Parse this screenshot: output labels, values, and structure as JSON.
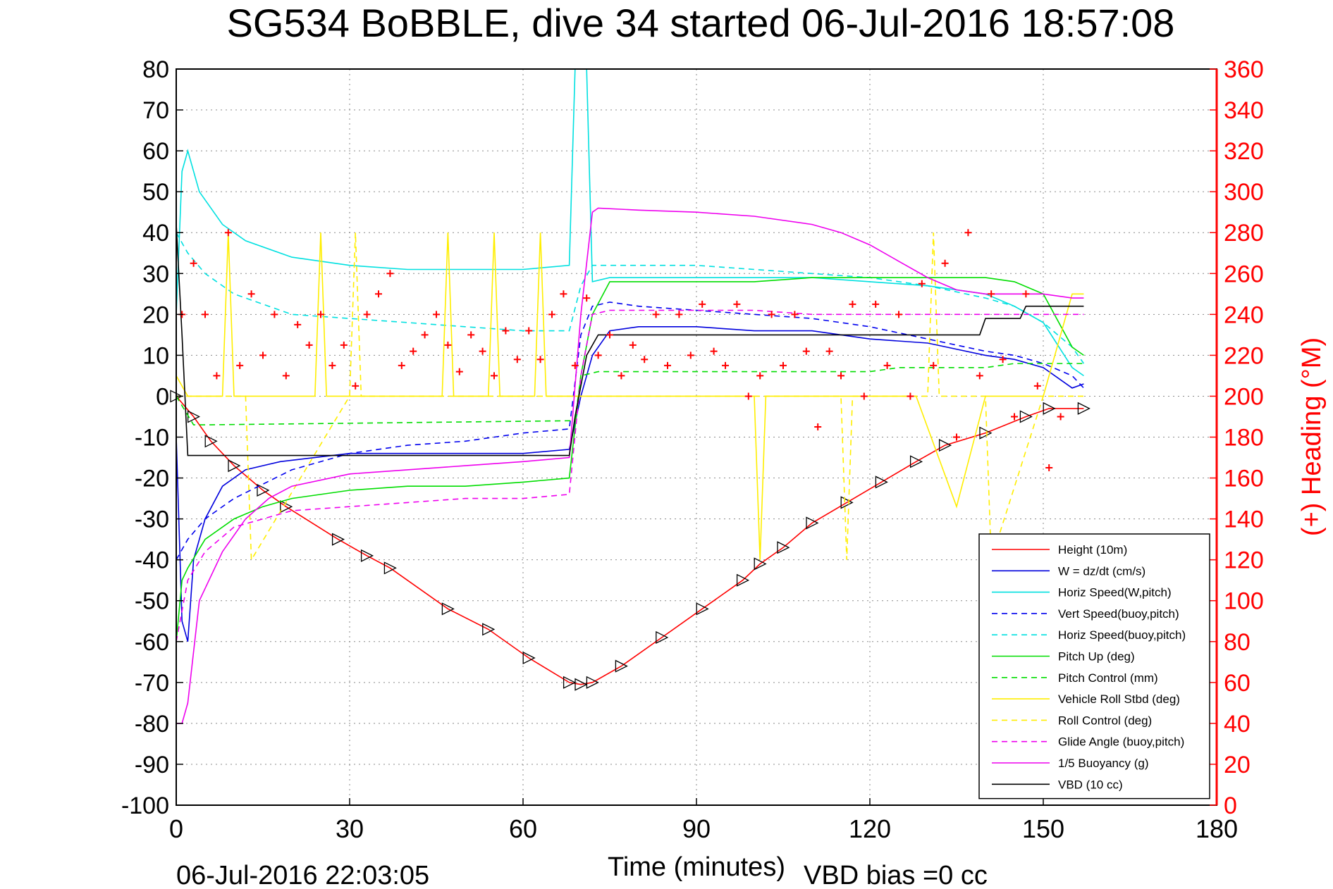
{
  "chart_data": {
    "type": "line",
    "title": "SG534 BoBBLE, dive 34 started 06-Jul-2016 18:57:08",
    "xlabel": "Time (minutes)",
    "ylabel": "",
    "y2label": "(+) Heading (°M)",
    "footer_left": "06-Jul-2016 22:03:05",
    "footer_right": "VBD bias =0 cc",
    "xlim": [
      0,
      180
    ],
    "ylim": [
      -100,
      80
    ],
    "y2lim": [
      0,
      360
    ],
    "xticks": [
      0,
      30,
      60,
      90,
      120,
      150,
      180
    ],
    "yticks": [
      -100,
      -90,
      -80,
      -70,
      -60,
      -50,
      -40,
      -30,
      -20,
      -10,
      0,
      10,
      20,
      30,
      40,
      50,
      60,
      70,
      80
    ],
    "y2ticks": [
      0,
      20,
      40,
      60,
      80,
      100,
      120,
      140,
      160,
      180,
      200,
      220,
      240,
      260,
      280,
      300,
      320,
      340,
      360
    ],
    "grid": true,
    "legend_position": "bottom-right",
    "colors": {
      "axis_right": "#ff0000",
      "axis_left": "#000000",
      "grid": "#888888"
    },
    "series": [
      {
        "name": "Height (10m)",
        "color": "#ff0000",
        "style": "solid",
        "marker": "triangle",
        "x": [
          0,
          3,
          6,
          10,
          15,
          19,
          28,
          33,
          37,
          47,
          54,
          61,
          68,
          70,
          72,
          77,
          84,
          91,
          98,
          101,
          105,
          110,
          116,
          122,
          128,
          133,
          140,
          147,
          151,
          157
        ],
        "y": [
          0,
          -5,
          -11,
          -17,
          -23,
          -27,
          -35,
          -39,
          -42,
          -52,
          -57,
          -64,
          -70,
          -70.5,
          -70,
          -66,
          -59,
          -52,
          -45,
          -41,
          -37,
          -31,
          -26,
          -21,
          -16,
          -12,
          -9,
          -5,
          -3,
          -3
        ]
      },
      {
        "name": "W = dz/dt (cm/s)",
        "color": "#0000dd",
        "style": "solid",
        "x": [
          0,
          1,
          2,
          3,
          5,
          8,
          12,
          18,
          30,
          40,
          50,
          60,
          68,
          70,
          72,
          75,
          80,
          90,
          100,
          110,
          120,
          130,
          140,
          145,
          150,
          155,
          157
        ],
        "y": [
          -10,
          -55,
          -60,
          -40,
          -30,
          -22,
          -18,
          -16,
          -14,
          -14,
          -14,
          -14,
          -13,
          0,
          10,
          16,
          17,
          17,
          16,
          16,
          14,
          13,
          10,
          9,
          7,
          2,
          3
        ]
      },
      {
        "name": "Horiz Speed(W,pitch)",
        "color": "#00e0e0",
        "style": "solid",
        "x": [
          0,
          1,
          2,
          4,
          8,
          12,
          20,
          30,
          40,
          50,
          60,
          68,
          69,
          70,
          71,
          72,
          75,
          80,
          90,
          100,
          110,
          120,
          130,
          140,
          145,
          150,
          155,
          157
        ],
        "y": [
          20,
          55,
          60,
          50,
          42,
          38,
          34,
          32,
          31,
          31,
          31,
          32,
          80,
          80,
          80,
          28,
          29,
          29,
          29,
          29,
          29,
          28,
          27,
          25,
          22,
          18,
          7,
          5
        ]
      },
      {
        "name": "Vert Speed(buoy,pitch)",
        "color": "#0000ee",
        "style": "dashed",
        "x": [
          0,
          2,
          5,
          10,
          20,
          30,
          40,
          50,
          60,
          68,
          70,
          72,
          75,
          80,
          90,
          100,
          110,
          120,
          130,
          140,
          145,
          150,
          155,
          157
        ],
        "y": [
          -40,
          -35,
          -30,
          -25,
          -18,
          -14,
          -12,
          -11,
          -9,
          -8,
          15,
          22,
          23,
          22,
          21,
          20,
          19,
          17,
          14,
          11,
          10,
          8,
          5,
          2
        ]
      },
      {
        "name": "Horiz Speed(buoy,pitch)",
        "color": "#00e0e0",
        "style": "dashed",
        "x": [
          0,
          2,
          5,
          10,
          20,
          30,
          40,
          50,
          60,
          68,
          70,
          72,
          75,
          80,
          90,
          100,
          110,
          120,
          130,
          140,
          145,
          150,
          155,
          157
        ],
        "y": [
          40,
          35,
          30,
          25,
          20,
          19,
          18,
          17,
          16,
          16,
          27,
          32,
          32,
          32,
          32,
          31,
          30,
          29,
          27,
          24,
          22,
          18,
          12,
          8
        ]
      },
      {
        "name": "Pitch Up (deg)",
        "color": "#00dd00",
        "style": "solid",
        "x": [
          0,
          1,
          2,
          5,
          10,
          15,
          20,
          30,
          40,
          50,
          60,
          68,
          70,
          72,
          75,
          80,
          90,
          100,
          110,
          120,
          130,
          140,
          145,
          150,
          155,
          157
        ],
        "y": [
          -60,
          -45,
          -42,
          -35,
          -30,
          -27,
          -25,
          -23,
          -22,
          -22,
          -21,
          -20,
          5,
          20,
          28,
          28,
          28,
          28,
          29,
          29,
          29,
          29,
          28,
          25,
          12,
          10
        ]
      },
      {
        "name": "Pitch Control (mm)",
        "color": "#00dd00",
        "style": "dashed",
        "x": [
          0,
          3,
          5,
          68,
          69,
          70,
          73,
          80,
          120,
          125,
          140,
          145,
          150,
          157
        ],
        "y": [
          0,
          -7,
          -7,
          -6,
          -6,
          5,
          6,
          6,
          6,
          7,
          7,
          8,
          8,
          8
        ]
      },
      {
        "name": "Vehicle Roll Stbd (deg)",
        "color": "#ffee00",
        "style": "solid",
        "x": [
          0,
          2,
          8,
          9,
          10,
          18,
          24,
          25,
          26,
          40,
          46,
          47,
          48,
          54,
          55,
          56,
          62,
          63,
          64,
          68,
          70,
          72,
          80,
          100,
          101,
          102,
          120,
          128,
          135,
          140,
          150,
          155,
          157
        ],
        "y": [
          5,
          0,
          0,
          40,
          0,
          0,
          0,
          40,
          0,
          0,
          0,
          40,
          0,
          0,
          40,
          0,
          0,
          40,
          0,
          0,
          0,
          0,
          0,
          0,
          -40,
          0,
          0,
          0,
          -27,
          0,
          0,
          25,
          25
        ]
      },
      {
        "name": "Roll Control (deg)",
        "color": "#ffee00",
        "style": "dashed",
        "x": [
          0,
          10,
          12,
          13,
          30,
          31,
          32,
          60,
          80,
          115,
          116,
          117,
          130,
          131,
          132,
          140,
          141,
          150,
          157
        ],
        "y": [
          0,
          0,
          0,
          -40,
          0,
          40,
          0,
          0,
          0,
          0,
          -40,
          0,
          0,
          40,
          0,
          0,
          -40,
          0,
          0
        ]
      },
      {
        "name": "Glide Angle (buoy,pitch)",
        "color": "#ee00ee",
        "style": "dashed",
        "x": [
          0,
          2,
          5,
          10,
          20,
          30,
          40,
          50,
          60,
          68,
          70,
          72,
          75,
          80,
          90,
          100,
          110,
          120,
          130,
          140,
          145,
          150,
          155,
          157
        ],
        "y": [
          -60,
          -45,
          -38,
          -32,
          -28,
          -27,
          -26,
          -25,
          -25,
          -24,
          5,
          20,
          21,
          21,
          21,
          21,
          20,
          20,
          20,
          20,
          20,
          20,
          20,
          20
        ]
      },
      {
        "name": "1/5 Buoyancy (g)",
        "color": "#ee00ee",
        "style": "solid",
        "x": [
          0,
          1,
          2,
          4,
          8,
          12,
          16,
          20,
          30,
          40,
          50,
          60,
          68,
          70,
          72,
          73,
          80,
          90,
          100,
          110,
          115,
          120,
          125,
          130,
          135,
          140,
          145,
          150,
          155,
          157
        ],
        "y": [
          -80,
          -80,
          -75,
          -50,
          -38,
          -30,
          -25,
          -22,
          -19,
          -18,
          -17,
          -16,
          -15,
          20,
          45,
          46,
          45.5,
          45,
          44,
          42,
          40,
          37,
          33,
          29,
          26,
          25,
          25,
          25,
          24,
          24
        ]
      },
      {
        "name": "VBD (10 cc)",
        "color": "#000000",
        "style": "solid",
        "x": [
          0,
          1,
          2,
          12,
          68,
          69,
          71,
          73,
          74,
          75,
          139,
          140,
          146,
          147,
          157
        ],
        "y": [
          42,
          15,
          -14.5,
          -14.5,
          -14.5,
          -5,
          10,
          15,
          15,
          15,
          15,
          19,
          19,
          22,
          22
        ]
      },
      {
        "name": "(+) Heading (°M)",
        "axis": "right",
        "color": "#ff0000",
        "style": "markers",
        "x": [
          1,
          3,
          5,
          7,
          9,
          11,
          13,
          15,
          17,
          19,
          21,
          23,
          25,
          27,
          29,
          31,
          33,
          35,
          37,
          39,
          41,
          43,
          45,
          47,
          49,
          51,
          53,
          55,
          57,
          59,
          61,
          63,
          65,
          67,
          69,
          71,
          73,
          75,
          77,
          79,
          81,
          83,
          85,
          87,
          89,
          91,
          93,
          95,
          97,
          99,
          101,
          103,
          105,
          107,
          109,
          111,
          113,
          115,
          117,
          119,
          121,
          123,
          125,
          127,
          129,
          131,
          133,
          135,
          137,
          139,
          141,
          143,
          145,
          147,
          149,
          151,
          153,
          155,
          157
        ],
        "y": [
          240,
          265,
          240,
          210,
          280,
          215,
          250,
          220,
          240,
          210,
          235,
          225,
          240,
          215,
          225,
          205,
          240,
          250,
          260,
          215,
          222,
          230,
          240,
          225,
          212,
          230,
          222,
          210,
          232,
          218,
          232,
          218,
          240,
          250,
          215,
          248,
          220,
          230,
          210,
          225,
          218,
          240,
          215,
          240,
          220,
          245,
          222,
          215,
          245,
          200,
          210,
          240,
          215,
          240,
          222,
          185,
          222,
          210,
          245,
          200,
          245,
          215,
          240,
          200,
          255,
          215,
          265,
          180,
          280,
          210,
          250,
          218,
          190,
          250,
          205,
          165,
          190,
          130,
          120
        ]
      }
    ]
  }
}
